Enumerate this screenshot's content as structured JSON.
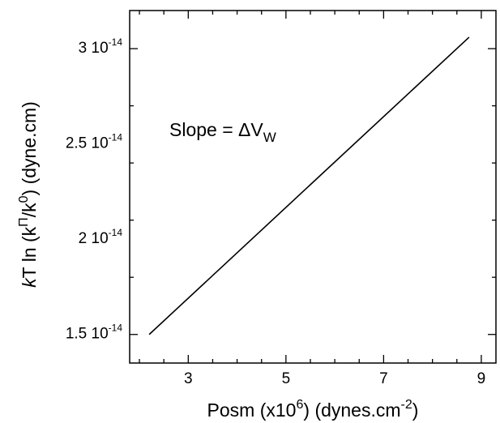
{
  "chart_data": {
    "type": "line",
    "title": "",
    "xlabel": {
      "pre": "Posm (x10",
      "sup1": "6",
      "mid": ") (dynes.cm",
      "sup2": "-2",
      "post": ")"
    },
    "ylabel": {
      "italic": "k",
      "pre": "T ln (k",
      "sup1": "Π",
      "mid": "/k",
      "sup2": "0",
      "post": ") (dyne.cm)"
    },
    "xlim": [
      1.8,
      9.3
    ],
    "ylim": [
      1.35e-14,
      3.2e-14
    ],
    "x_ticks": [
      3,
      5,
      7,
      9
    ],
    "x_minor_step": 0.5,
    "y_ticks": [
      {
        "value": 1.5e-14,
        "mantissa": "1.5 10",
        "exp": "-14"
      },
      {
        "value": 2e-14,
        "mantissa": "2 10",
        "exp": "-14"
      },
      {
        "value": 2.5e-14,
        "mantissa": "2.5 10",
        "exp": "-14"
      },
      {
        "value": 3e-14,
        "mantissa": "3 10",
        "exp": "-14"
      }
    ],
    "y_minor_step": 2.5e-15,
    "series": [
      {
        "x": [
          2.2,
          8.75
        ],
        "y": [
          1.5e-14,
          3.06e-14
        ]
      }
    ],
    "annotation": {
      "text": "Slope = ΔV",
      "subscript": "W",
      "x": 2.8,
      "y": 2.65e-14
    },
    "grid": false,
    "line_color": "#000000"
  }
}
